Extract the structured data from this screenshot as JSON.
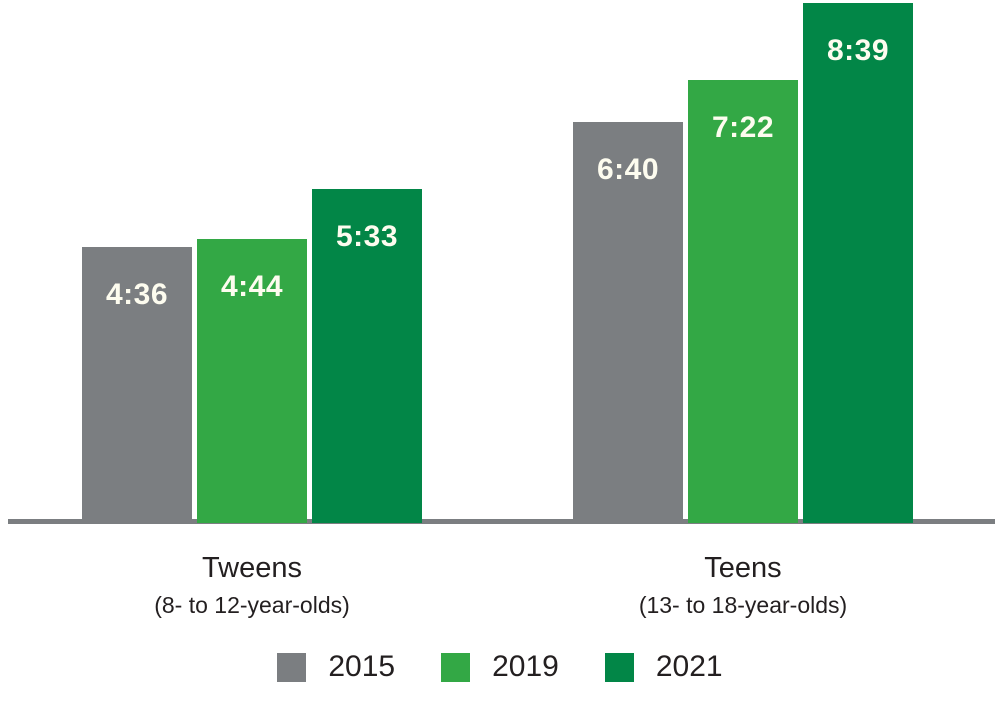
{
  "chart_data": {
    "type": "bar",
    "categories": [
      "Tweens",
      "Teens"
    ],
    "category_subtitles": [
      "(8- to 12-year-olds)",
      "(13- to 18-year-olds)"
    ],
    "series": [
      {
        "name": "2015",
        "color": "#7b7e81",
        "values": [
          4.6,
          6.667
        ],
        "labels": [
          "4:36",
          "6:40"
        ]
      },
      {
        "name": "2019",
        "color": "#33a845",
        "values": [
          4.733,
          7.367
        ],
        "labels": [
          "4:44",
          "7:22"
        ]
      },
      {
        "name": "2021",
        "color": "#028647",
        "values": [
          5.55,
          8.65
        ],
        "labels": [
          "5:33",
          "8:39"
        ]
      }
    ],
    "title": "",
    "xlabel": "",
    "ylabel": "",
    "ylim": [
      0,
      8.72
    ],
    "grid": false,
    "legend_position": "bottom",
    "value_label_color": "#fdfcef",
    "text_color": "#231f20",
    "axis_line_color": "#7b7e81"
  }
}
